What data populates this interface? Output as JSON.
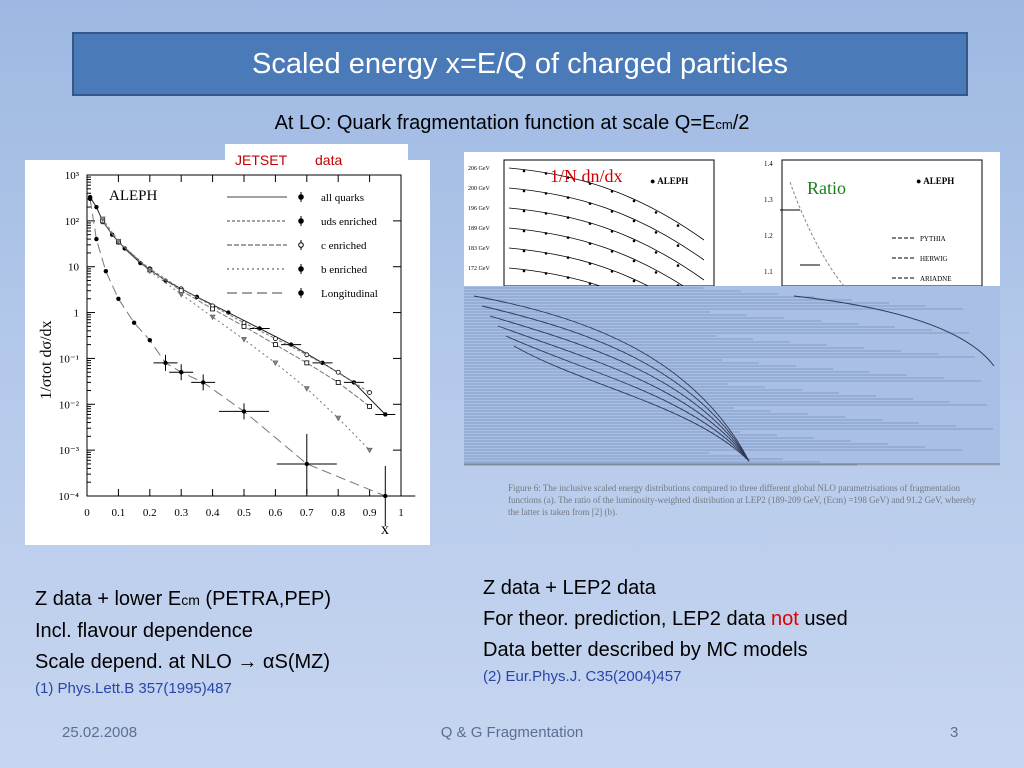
{
  "slide": {
    "title": "Scaled energy x=E/Q of charged particles",
    "subtitle_prefix": "At LO: Quark fragmentation function at scale Q=E",
    "subtitle_sub": "cm",
    "subtitle_suffix": "/2",
    "legend_tag": {
      "jetset": "JETSET",
      "data": "data"
    }
  },
  "left_text": {
    "line1_prefix": "Z data + lower E",
    "line1_sub": "cm",
    "line1_suffix": " (PETRA,PEP)",
    "line2": "Incl. flavour dependence",
    "line3": "Scale depend.  at NLO → αS(MZ)",
    "ref": "(1)  Phys.Lett.B 357(1995)487"
  },
  "right_text": {
    "line1": "Z data + LEP2 data",
    "line2_prefix": "For theor.  prediction, LEP2 data ",
    "line2_red": "not",
    "line2_suffix": " used",
    "line3": "Data better described by MC models",
    "ref": "(2)  Eur.Phys.J. C35(2004)457"
  },
  "footer": {
    "date": "25.02.2008",
    "center": "Q & G Fragmentation",
    "page": "3"
  },
  "right_plot": {
    "label_left": "1/N dn/dx",
    "label_right": "Ratio",
    "experiment": "ALEPH",
    "energy_labels": [
      "206 GeV",
      "200 GeV",
      "196 GeV",
      "189 GeV",
      "183 GeV",
      "172 GeV"
    ],
    "ratio_legend": [
      "PYTHIA",
      "HERWIG",
      "ARIADNE"
    ],
    "caption": "Figure 6:  The inclusive scaled energy distributions compared to three different global NLO parametrisations of fragmentation functions (a). The ratio of the luminosity-weighted distribution at LEP2 (189-209 GeV, (Ecm) =198 GeV) and 91.2 GeV, whereby the latter is taken from [2] (b)."
  },
  "chart_data": {
    "type": "scatter",
    "experiment": "ALEPH",
    "xlabel": "x",
    "ylabel": "1/σtot dσ/dx",
    "xlim": [
      0,
      1
    ],
    "ylim": [
      0.0001,
      1000
    ],
    "yscale": "log",
    "x_ticks": [
      "0",
      "0.1",
      "0.2",
      "0.3",
      "0.4",
      "0.5",
      "0.6",
      "0.7",
      "0.8",
      "0.9",
      "1"
    ],
    "y_ticks": [
      "10³",
      "10²",
      "10",
      "1",
      "10⁻¹",
      "10⁻²",
      "10⁻³",
      "10⁻⁴"
    ],
    "legend": [
      "all quarks",
      "uds enriched",
      "c enriched",
      "b enriched",
      "Longitudinal"
    ],
    "series": [
      {
        "name": "all quarks",
        "x": [
          0.01,
          0.03,
          0.05,
          0.08,
          0.12,
          0.17,
          0.25,
          0.35,
          0.45,
          0.55,
          0.65,
          0.75,
          0.85,
          0.95
        ],
        "y": [
          330,
          200,
          100,
          50,
          25,
          12,
          5,
          2.2,
          1.0,
          0.45,
          0.2,
          0.08,
          0.03,
          0.006
        ]
      },
      {
        "name": "uds enriched",
        "x": [
          0.05,
          0.1,
          0.2,
          0.3,
          0.4,
          0.5,
          0.6,
          0.7,
          0.8,
          0.9
        ],
        "y": [
          95,
          34,
          9,
          3.3,
          1.4,
          0.6,
          0.27,
          0.12,
          0.05,
          0.018
        ]
      },
      {
        "name": "c enriched",
        "x": [
          0.05,
          0.1,
          0.2,
          0.3,
          0.4,
          0.5,
          0.6,
          0.7,
          0.8,
          0.9
        ],
        "y": [
          100,
          35,
          8.5,
          3.0,
          1.2,
          0.5,
          0.2,
          0.08,
          0.03,
          0.009
        ]
      },
      {
        "name": "b enriched",
        "x": [
          0.05,
          0.1,
          0.2,
          0.3,
          0.4,
          0.5,
          0.6,
          0.7,
          0.8,
          0.9
        ],
        "y": [
          110,
          36,
          8,
          2.5,
          0.8,
          0.26,
          0.08,
          0.022,
          0.005,
          0.001
        ]
      },
      {
        "name": "Longitudinal",
        "x": [
          0.01,
          0.03,
          0.06,
          0.1,
          0.15,
          0.2,
          0.25,
          0.3,
          0.37,
          0.5,
          0.7,
          0.95
        ],
        "y": [
          300,
          40,
          8,
          2,
          0.6,
          0.25,
          0.08,
          0.05,
          0.03,
          0.007,
          0.0005,
          0.0001
        ]
      }
    ]
  }
}
